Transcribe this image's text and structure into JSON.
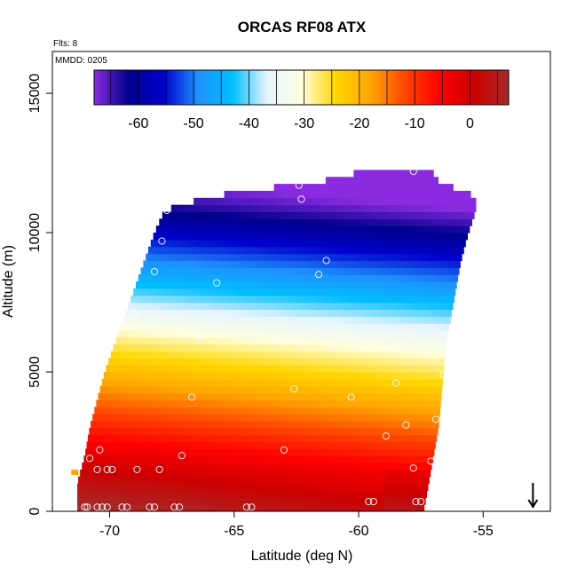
{
  "chart_data": {
    "type": "heatmap",
    "title": "ORCAS RF08 ATX",
    "annotations": [
      "Flts: 8",
      "MMDD: 0205"
    ],
    "xlabel": "Latitude (deg N)",
    "ylabel": "Altitude (m)",
    "xlim": [
      -72.3,
      -52.3
    ],
    "ylim": [
      0,
      16500
    ],
    "x_ticks": [
      -70,
      -65,
      -60,
      -55
    ],
    "x_tick_labels": [
      "-70",
      "-65",
      "-60",
      "-55"
    ],
    "y_ticks": [
      0,
      5000,
      10000,
      15000
    ],
    "y_tick_labels": [
      "0",
      "5000",
      "10000",
      "15000"
    ],
    "colorbar": {
      "range": [
        -68,
        7
      ],
      "ticks": [
        -60,
        -50,
        -40,
        -30,
        -20,
        -10,
        0
      ],
      "tick_labels": [
        "-60",
        "-50",
        "-40",
        "-30",
        "-20",
        "-10",
        "0"
      ],
      "dividers": [
        -65,
        -60,
        -55,
        -50,
        -45,
        -40,
        -35,
        -30,
        -25,
        -20,
        -15,
        -10,
        -5,
        0,
        5
      ],
      "colors": [
        "#8a2be2",
        "#00008b",
        "#0000cd",
        "#1e90ff",
        "#00bfff",
        "#e6f4ff",
        "#ffffe0",
        "#ffd700",
        "#ffa500",
        "#ff4500",
        "#ff0000",
        "#cd0000",
        "#a52a2a"
      ]
    },
    "field": {
      "x_range": [
        -71.3,
        -55.0
      ],
      "rows": [
        {
          "z": 0,
          "x_min": -71.3,
          "x_max": -57.4
        },
        {
          "z": 1000,
          "x_min": -71.3,
          "x_max": -57.2
        },
        {
          "z": 2000,
          "x_min": -71.0,
          "x_max": -57.0
        },
        {
          "z": 3000,
          "x_min": -70.8,
          "x_max": -56.8
        },
        {
          "z": 4000,
          "x_min": -70.5,
          "x_max": -56.7
        },
        {
          "z": 5000,
          "x_min": -70.2,
          "x_max": -56.6
        },
        {
          "z": 6000,
          "x_min": -69.8,
          "x_max": -56.5
        },
        {
          "z": 7000,
          "x_min": -69.4,
          "x_max": -56.3
        },
        {
          "z": 8000,
          "x_min": -69.0,
          "x_max": -56.1
        },
        {
          "z": 9000,
          "x_min": -68.6,
          "x_max": -55.9
        },
        {
          "z": 10000,
          "x_min": -68.2,
          "x_max": -55.6
        },
        {
          "z": 10800,
          "x_min": -67.8,
          "x_max": -55.3
        },
        {
          "z": 11300,
          "x_min": -66.0,
          "x_max": -55.3
        },
        {
          "z": 11800,
          "x_min": -62.0,
          "x_max": -56.7
        },
        {
          "z": 12000,
          "x_min": -60.2,
          "x_max": -57.0
        }
      ],
      "temperature_profile": [
        {
          "z": 0,
          "t": 8
        },
        {
          "z": 1500,
          "t": 1
        },
        {
          "z": 3000,
          "t": -8
        },
        {
          "z": 4500,
          "t": -17
        },
        {
          "z": 6000,
          "t": -26
        },
        {
          "z": 7000,
          "t": -33
        },
        {
          "z": 8000,
          "t": -41
        },
        {
          "z": 9000,
          "t": -48
        },
        {
          "z": 10000,
          "t": -55
        },
        {
          "z": 11000,
          "t": -62
        },
        {
          "z": 12000,
          "t": -67
        }
      ]
    },
    "observations": [
      {
        "x": -71.0,
        "y": 150
      },
      {
        "x": -70.9,
        "y": 150
      },
      {
        "x": -70.5,
        "y": 150
      },
      {
        "x": -70.3,
        "y": 150
      },
      {
        "x": -70.1,
        "y": 150
      },
      {
        "x": -69.5,
        "y": 150
      },
      {
        "x": -69.3,
        "y": 150
      },
      {
        "x": -68.4,
        "y": 150
      },
      {
        "x": -68.2,
        "y": 150
      },
      {
        "x": -67.4,
        "y": 150
      },
      {
        "x": -67.2,
        "y": 150
      },
      {
        "x": -64.5,
        "y": 150
      },
      {
        "x": -64.3,
        "y": 150
      },
      {
        "x": -59.6,
        "y": 350
      },
      {
        "x": -59.4,
        "y": 350
      },
      {
        "x": -57.7,
        "y": 350
      },
      {
        "x": -57.5,
        "y": 350
      },
      {
        "x": -70.5,
        "y": 1500
      },
      {
        "x": -70.1,
        "y": 1500
      },
      {
        "x": -69.9,
        "y": 1500
      },
      {
        "x": -68.9,
        "y": 1500
      },
      {
        "x": -68.0,
        "y": 1500
      },
      {
        "x": -70.8,
        "y": 1900
      },
      {
        "x": -70.4,
        "y": 2200
      },
      {
        "x": -67.1,
        "y": 2000
      },
      {
        "x": -63.0,
        "y": 2200
      },
      {
        "x": -58.9,
        "y": 2700
      },
      {
        "x": -58.1,
        "y": 3100
      },
      {
        "x": -57.1,
        "y": 1800
      },
      {
        "x": -57.8,
        "y": 1550
      },
      {
        "x": -56.9,
        "y": 3300
      },
      {
        "x": -66.7,
        "y": 4100
      },
      {
        "x": -62.6,
        "y": 4400
      },
      {
        "x": -60.3,
        "y": 4100
      },
      {
        "x": -58.5,
        "y": 4600
      },
      {
        "x": -56.6,
        "y": 4900
      },
      {
        "x": -66.4,
        "y": 6300
      },
      {
        "x": -69.0,
        "y": 7100
      },
      {
        "x": -68.2,
        "y": 8600
      },
      {
        "x": -65.7,
        "y": 8200
      },
      {
        "x": -61.6,
        "y": 8500
      },
      {
        "x": -61.3,
        "y": 9000
      },
      {
        "x": -55.9,
        "y": 8100
      },
      {
        "x": -67.9,
        "y": 9700
      },
      {
        "x": -67.7,
        "y": 10800
      },
      {
        "x": -62.3,
        "y": 11200
      },
      {
        "x": -62.4,
        "y": 11700
      },
      {
        "x": -57.8,
        "y": 12200
      },
      {
        "x": -55.0,
        "y": 11600
      }
    ],
    "markers": [
      {
        "shape": "square",
        "x": -71.4,
        "y": 1400,
        "color": "#ffa500"
      },
      {
        "shape": "arrow-down",
        "x": -53.0,
        "y": 700,
        "color": "#000000"
      }
    ]
  }
}
